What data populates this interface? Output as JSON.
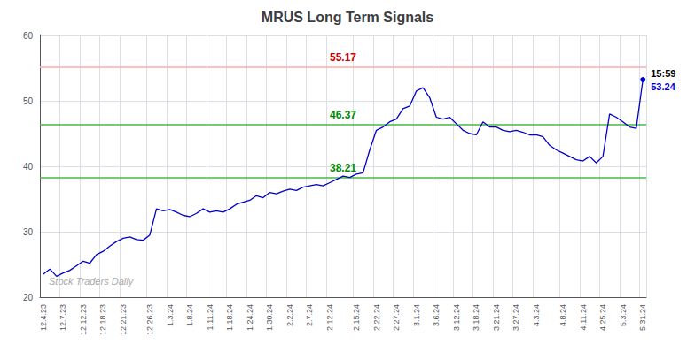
{
  "chart_data": {
    "type": "line",
    "title": "MRUS Long Term Signals",
    "watermark": "Stock Traders Daily",
    "categories": [
      "12.4.23",
      null,
      null,
      "12.7.23",
      null,
      null,
      "12.12.23",
      null,
      null,
      "12.18.23",
      null,
      null,
      "12.21.23",
      null,
      null,
      null,
      "12.26.23",
      null,
      null,
      "1.3.24",
      null,
      null,
      "1.8.24",
      null,
      null,
      "1.11.24",
      null,
      null,
      "1.18.24",
      null,
      null,
      "1.24.24",
      null,
      null,
      "1.30.24",
      null,
      null,
      "2.2.24",
      null,
      null,
      "2.7.24",
      null,
      null,
      "2.12.24",
      null,
      null,
      null,
      "2.15.24",
      null,
      null,
      "2.22.24",
      null,
      null,
      "2.27.24",
      null,
      null,
      "3.1.24",
      null,
      null,
      "3.6.24",
      null,
      null,
      "3.12.24",
      null,
      null,
      "3.18.24",
      null,
      null,
      "3.21.24",
      null,
      null,
      "3.27.24",
      null,
      null,
      "4.3.24",
      null,
      null,
      null,
      "4.8.24",
      null,
      null,
      "4.11.24",
      null,
      null,
      "4.25.24",
      null,
      null,
      "5.3.24",
      null,
      null,
      "5.31.24"
    ],
    "values": [
      23.5,
      24.3,
      23.2,
      23.7,
      24.1,
      24.8,
      25.5,
      25.2,
      26.5,
      27.0,
      27.8,
      28.5,
      29.0,
      29.2,
      28.8,
      28.7,
      29.5,
      33.5,
      33.2,
      33.4,
      33.0,
      32.5,
      32.3,
      32.8,
      33.5,
      33.0,
      33.2,
      33.0,
      33.5,
      34.2,
      34.5,
      34.8,
      35.5,
      35.2,
      36.0,
      35.8,
      36.2,
      36.5,
      36.3,
      36.8,
      37.0,
      37.2,
      37.0,
      37.5,
      38.0,
      38.5,
      38.3,
      38.8,
      39.0,
      42.5,
      45.5,
      46.0,
      46.8,
      47.2,
      48.8,
      49.2,
      51.5,
      52.0,
      50.5,
      47.5,
      47.2,
      47.5,
      46.5,
      45.5,
      45.0,
      44.8,
      46.8,
      46.0,
      46.0,
      45.5,
      45.3,
      45.5,
      45.2,
      44.8,
      44.8,
      44.5,
      43.2,
      42.5,
      42.0,
      41.5,
      41.0,
      40.8,
      41.5,
      40.5,
      41.5,
      48.0,
      47.5,
      46.8,
      46.0,
      45.8,
      53.24
    ],
    "color": "#0000cc",
    "hlines": [
      {
        "value": 55.17,
        "label": "55.17",
        "color": "#ffaaaa",
        "label_color": "#cc0000"
      },
      {
        "value": 46.37,
        "label": "46.37",
        "color": "#44bb44",
        "label_color": "#008800"
      },
      {
        "value": 38.21,
        "label": "38.21",
        "color": "#44bb44",
        "label_color": "#008800"
      }
    ],
    "last_point_annotation": {
      "time": "15:59",
      "price": 53.24,
      "time_color": "#000000",
      "price_color": "#0000cc"
    },
    "ylim": [
      20,
      60
    ],
    "yticks": [
      20,
      30,
      40,
      50,
      60
    ],
    "grid": true
  }
}
